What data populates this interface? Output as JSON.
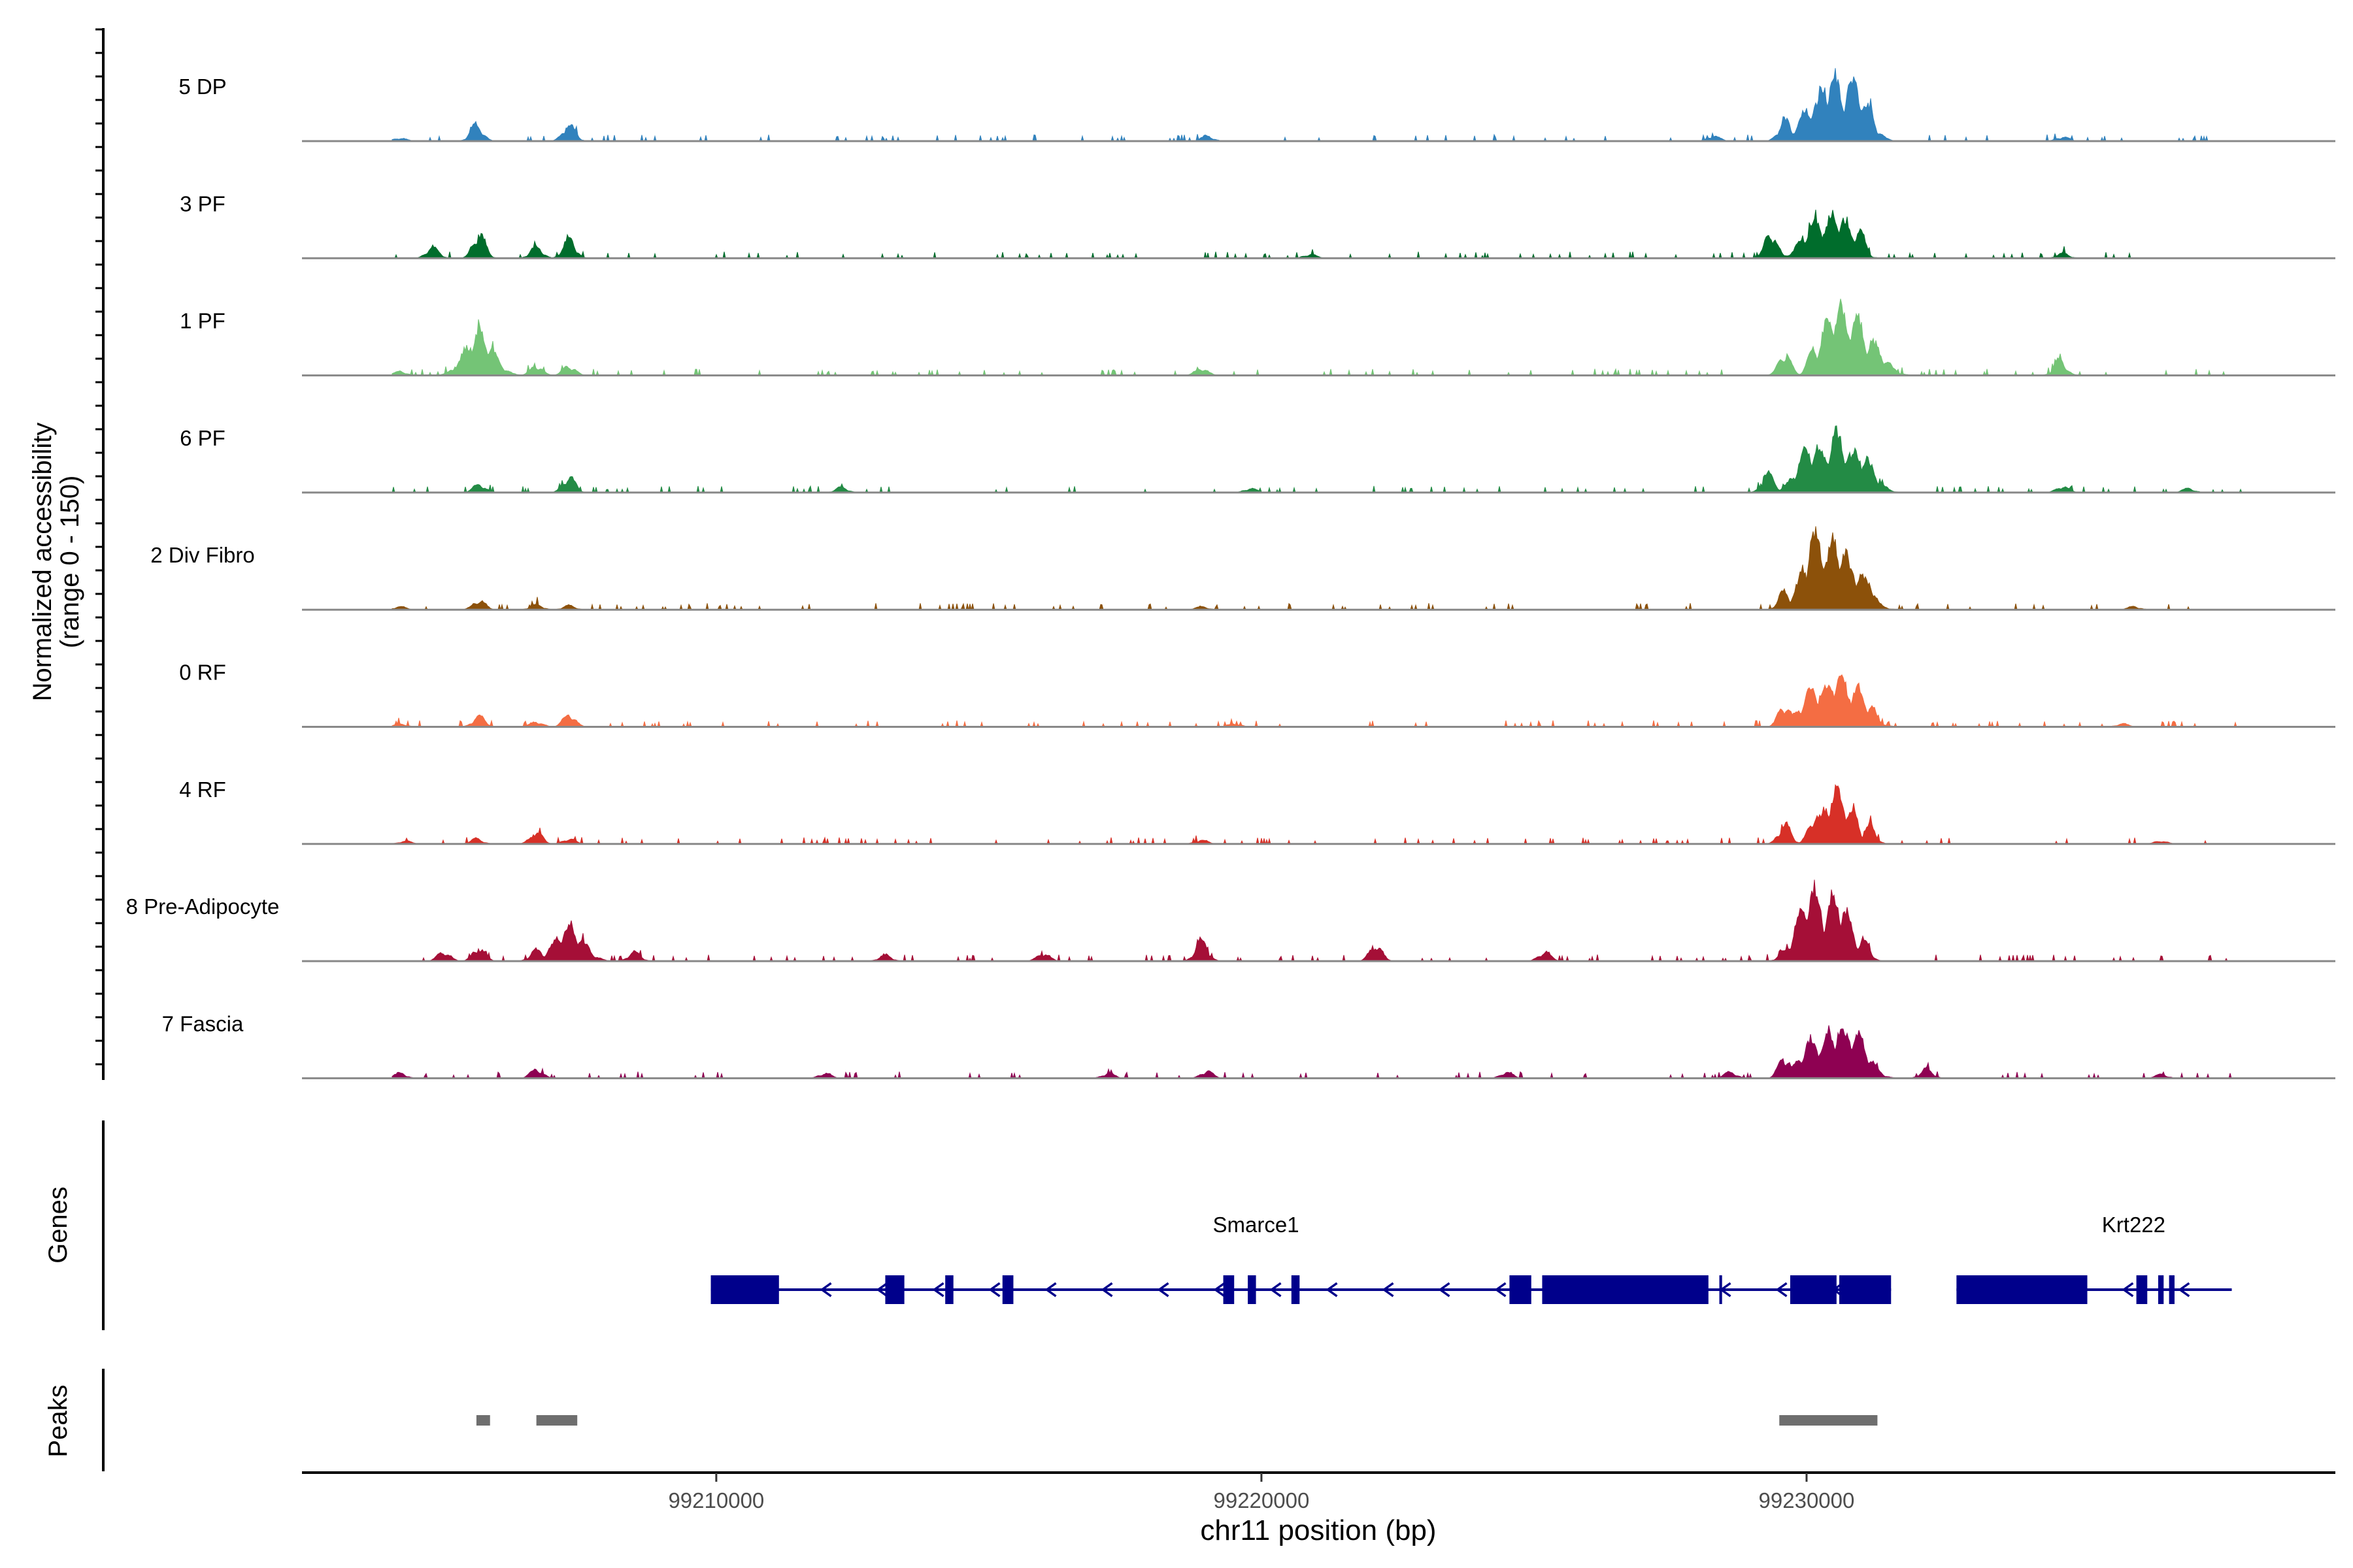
{
  "chart_data": {
    "type": "area",
    "title": "",
    "chromosome": "chr11",
    "xlabel": "chr11 position (bp)",
    "ylabel_line1": "Normalized accessibility",
    "ylabel_line2": "(range 0 - 150)",
    "xlim": [
      99202400,
      99239700
    ],
    "ylim": [
      0,
      150
    ],
    "x_ticks": [
      99210000,
      99220000,
      99230000
    ],
    "x_tick_labels": [
      "99210000",
      "99220000",
      "99230000"
    ],
    "tracks_label_genes": "Genes",
    "tracks_label_peaks": "Peaks",
    "series": [
      {
        "name": "5 DP",
        "color": "#3182BD",
        "x": [
          99204200,
          99205600,
          99207300,
          99219000,
          99228300,
          99229600,
          99230150,
          99230450,
          99230850,
          99231150,
          99234700
        ],
        "y": [
          6,
          32,
          32,
          10,
          10,
          40,
          70,
          118,
          110,
          60,
          8
        ]
      },
      {
        "name": "3 PF",
        "color": "#006D2C",
        "x": [
          99203400,
          99204800,
          99205650,
          99206700,
          99207300,
          99220900,
          99229350,
          99230200,
          99230550,
          99230950,
          99234700
        ],
        "y": [
          6,
          22,
          48,
          22,
          38,
          8,
          50,
          70,
          82,
          58,
          10
        ]
      },
      {
        "name": "1 PF",
        "color": "#74C476",
        "x": [
          99204200,
          99205650,
          99206700,
          99207300,
          99218900,
          99229600,
          99230150,
          99230550,
          99230850,
          99231150,
          99234650
        ],
        "y": [
          8,
          80,
          18,
          18,
          14,
          42,
          58,
          125,
          110,
          62,
          28
        ]
      },
      {
        "name": "6 PF",
        "color": "#238B45",
        "x": [
          99203600,
          99205650,
          99207300,
          99212300,
          99219800,
          99229300,
          99230100,
          99230550,
          99230950,
          99234700,
          99237000
        ],
        "y": [
          8,
          16,
          30,
          10,
          8,
          36,
          88,
          105,
          75,
          12,
          8
        ]
      },
      {
        "name": "2 Div Fibro",
        "color": "#8C510A",
        "x": [
          99204200,
          99205650,
          99206700,
          99207300,
          99218900,
          99229600,
          99230200,
          99230550,
          99230850,
          99231150,
          99236000
        ],
        "y": [
          6,
          18,
          10,
          8,
          6,
          35,
          135,
          128,
          78,
          52,
          6
        ]
      },
      {
        "name": "0 RF",
        "color": "#F46D43",
        "x": [
          99204200,
          99205650,
          99206700,
          99207300,
          99219500,
          99229600,
          99230150,
          99230550,
          99230850,
          99231150,
          99235800
        ],
        "y": [
          6,
          20,
          10,
          24,
          6,
          42,
          70,
          95,
          75,
          45,
          6
        ]
      },
      {
        "name": "4 RF",
        "color": "#D73027",
        "x": [
          99204300,
          99205600,
          99206700,
          99207300,
          99218900,
          99229600,
          99230150,
          99230550,
          99230850,
          99231150,
          99236500
        ],
        "y": [
          6,
          10,
          22,
          10,
          8,
          38,
          55,
          98,
          58,
          35,
          6
        ]
      },
      {
        "name": "8 Pre-Adipocyte",
        "color": "#A50F37",
        "x": [
          99205000,
          99205650,
          99206700,
          99207300,
          99208500,
          99213100,
          99216000,
          99218900,
          99222100,
          99225200,
          99229600,
          99230100,
          99230550,
          99231050
        ],
        "y": [
          18,
          25,
          22,
          65,
          18,
          12,
          15,
          40,
          30,
          18,
          18,
          130,
          118,
          40
        ]
      },
      {
        "name": "7 Fascia",
        "color": "#8E0152",
        "x": [
          99204200,
          99206700,
          99212000,
          99217200,
          99219000,
          99224500,
          99228600,
          99229600,
          99230150,
          99230550,
          99230850,
          99232200,
          99236500
        ],
        "y": [
          10,
          18,
          10,
          10,
          14,
          12,
          12,
          40,
          72,
          92,
          88,
          18,
          8
        ]
      }
    ],
    "genes": [
      {
        "name": "Smarce1",
        "strand": "-",
        "start": 99209900,
        "end": 99231550,
        "exons": [
          [
            99209900,
            99211150
          ],
          [
            99213100,
            99213450
          ],
          [
            99214200,
            99214350
          ],
          [
            99215250,
            99215450
          ],
          [
            99219300,
            99219500
          ],
          [
            99219750,
            99219900
          ],
          [
            99220550,
            99220700
          ],
          [
            99224550,
            99224950
          ],
          [
            99225150,
            99228200
          ],
          [
            99228400,
            99228450
          ],
          [
            99229700,
            99230550
          ],
          [
            99230600,
            99231550
          ]
        ]
      },
      {
        "name": "Krt222",
        "strand": "-",
        "start": 99232750,
        "end": 99237800,
        "exons": [
          [
            99232750,
            99235150
          ],
          [
            99236050,
            99236250
          ],
          [
            99236450,
            99236550
          ],
          [
            99236650,
            99236750
          ]
        ]
      }
    ],
    "peaks": [
      [
        99205600,
        99205850
      ],
      [
        99206700,
        99207450
      ],
      [
        99229500,
        99231300
      ]
    ]
  }
}
